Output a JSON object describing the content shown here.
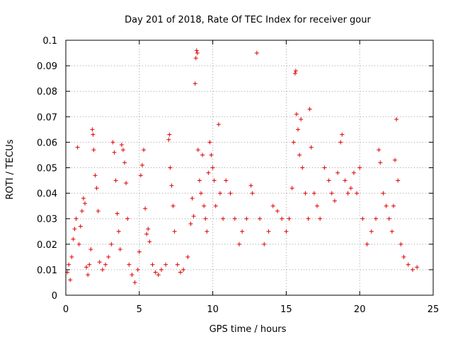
{
  "chart_data": {
    "type": "scatter",
    "title": "Day 201 of 2018, Rate Of TEC Index for receiver gour",
    "xlabel": "GPS time / hours",
    "ylabel": "ROTI / TECUs",
    "xlim": [
      0,
      25
    ],
    "ylim": [
      0,
      0.1
    ],
    "x_ticks": [
      0,
      5,
      10,
      15,
      20,
      25
    ],
    "x_tick_labels": [
      "0",
      "5",
      "10",
      "15",
      "20",
      "25"
    ],
    "y_ticks": [
      0,
      0.01,
      0.02,
      0.03,
      0.04,
      0.05,
      0.06,
      0.07,
      0.08,
      0.09,
      0.1
    ],
    "y_tick_labels": [
      "0",
      "0.01",
      "0.02",
      "0.03",
      "0.04",
      "0.05",
      "0.06",
      "0.07",
      "0.08",
      "0.09",
      "0.1"
    ],
    "grid": true,
    "marker": "+",
    "color": "#e00000",
    "series": [
      {
        "name": "ROTI",
        "points": [
          [
            0.1,
            0.009
          ],
          [
            0.2,
            0.012
          ],
          [
            0.3,
            0.006
          ],
          [
            0.4,
            0.015
          ],
          [
            0.5,
            0.022
          ],
          [
            0.6,
            0.026
          ],
          [
            0.7,
            0.03
          ],
          [
            0.8,
            0.058
          ],
          [
            0.9,
            0.02
          ],
          [
            1.0,
            0.027
          ],
          [
            1.1,
            0.033
          ],
          [
            1.2,
            0.038
          ],
          [
            1.3,
            0.036
          ],
          [
            1.4,
            0.011
          ],
          [
            1.5,
            0.008
          ],
          [
            1.6,
            0.012
          ],
          [
            1.7,
            0.018
          ],
          [
            1.8,
            0.065
          ],
          [
            1.85,
            0.063
          ],
          [
            1.9,
            0.057
          ],
          [
            2.0,
            0.047
          ],
          [
            2.1,
            0.042
          ],
          [
            2.2,
            0.033
          ],
          [
            2.3,
            0.013
          ],
          [
            2.5,
            0.01
          ],
          [
            2.7,
            0.012
          ],
          [
            2.9,
            0.015
          ],
          [
            3.1,
            0.02
          ],
          [
            3.2,
            0.06
          ],
          [
            3.3,
            0.056
          ],
          [
            3.4,
            0.045
          ],
          [
            3.5,
            0.032
          ],
          [
            3.6,
            0.025
          ],
          [
            3.7,
            0.018
          ],
          [
            3.8,
            0.059
          ],
          [
            3.9,
            0.057
          ],
          [
            4.0,
            0.052
          ],
          [
            4.1,
            0.044
          ],
          [
            4.2,
            0.03
          ],
          [
            4.3,
            0.012
          ],
          [
            4.5,
            0.008
          ],
          [
            4.7,
            0.005
          ],
          [
            4.9,
            0.01
          ],
          [
            5.0,
            0.017
          ],
          [
            5.1,
            0.047
          ],
          [
            5.2,
            0.051
          ],
          [
            5.3,
            0.057
          ],
          [
            5.4,
            0.034
          ],
          [
            5.5,
            0.024
          ],
          [
            5.6,
            0.026
          ],
          [
            5.7,
            0.021
          ],
          [
            5.9,
            0.012
          ],
          [
            6.1,
            0.009
          ],
          [
            6.3,
            0.008
          ],
          [
            6.5,
            0.01
          ],
          [
            6.8,
            0.012
          ],
          [
            7.0,
            0.061
          ],
          [
            7.05,
            0.063
          ],
          [
            7.1,
            0.05
          ],
          [
            7.2,
            0.043
          ],
          [
            7.3,
            0.035
          ],
          [
            7.4,
            0.025
          ],
          [
            7.6,
            0.012
          ],
          [
            7.8,
            0.009
          ],
          [
            8.0,
            0.01
          ],
          [
            8.3,
            0.015
          ],
          [
            8.5,
            0.028
          ],
          [
            8.6,
            0.038
          ],
          [
            8.7,
            0.031
          ],
          [
            8.8,
            0.083
          ],
          [
            8.85,
            0.093
          ],
          [
            8.9,
            0.096
          ],
          [
            8.95,
            0.095
          ],
          [
            9.0,
            0.057
          ],
          [
            9.1,
            0.045
          ],
          [
            9.2,
            0.04
          ],
          [
            9.3,
            0.055
          ],
          [
            9.4,
            0.035
          ],
          [
            9.5,
            0.03
          ],
          [
            9.6,
            0.025
          ],
          [
            9.7,
            0.048
          ],
          [
            9.8,
            0.06
          ],
          [
            9.9,
            0.055
          ],
          [
            10.0,
            0.05
          ],
          [
            10.1,
            0.045
          ],
          [
            10.2,
            0.035
          ],
          [
            10.4,
            0.067
          ],
          [
            10.5,
            0.04
          ],
          [
            10.7,
            0.03
          ],
          [
            10.9,
            0.045
          ],
          [
            11.2,
            0.04
          ],
          [
            11.5,
            0.03
          ],
          [
            11.8,
            0.02
          ],
          [
            12.0,
            0.025
          ],
          [
            12.3,
            0.03
          ],
          [
            12.6,
            0.043
          ],
          [
            12.7,
            0.04
          ],
          [
            13.0,
            0.095
          ],
          [
            13.2,
            0.03
          ],
          [
            13.5,
            0.02
          ],
          [
            13.8,
            0.025
          ],
          [
            14.1,
            0.035
          ],
          [
            14.4,
            0.033
          ],
          [
            14.7,
            0.03
          ],
          [
            15.0,
            0.025
          ],
          [
            15.2,
            0.03
          ],
          [
            15.4,
            0.042
          ],
          [
            15.5,
            0.06
          ],
          [
            15.6,
            0.087
          ],
          [
            15.65,
            0.088
          ],
          [
            15.7,
            0.071
          ],
          [
            15.8,
            0.065
          ],
          [
            15.9,
            0.055
          ],
          [
            16.0,
            0.069
          ],
          [
            16.1,
            0.05
          ],
          [
            16.3,
            0.04
          ],
          [
            16.5,
            0.03
          ],
          [
            16.6,
            0.073
          ],
          [
            16.7,
            0.058
          ],
          [
            16.9,
            0.04
          ],
          [
            17.1,
            0.035
          ],
          [
            17.3,
            0.03
          ],
          [
            17.6,
            0.05
          ],
          [
            17.9,
            0.045
          ],
          [
            18.1,
            0.04
          ],
          [
            18.3,
            0.037
          ],
          [
            18.5,
            0.048
          ],
          [
            18.7,
            0.06
          ],
          [
            18.8,
            0.063
          ],
          [
            19.0,
            0.045
          ],
          [
            19.2,
            0.04
          ],
          [
            19.4,
            0.042
          ],
          [
            19.6,
            0.048
          ],
          [
            19.8,
            0.04
          ],
          [
            20.0,
            0.05
          ],
          [
            20.2,
            0.03
          ],
          [
            20.5,
            0.02
          ],
          [
            20.8,
            0.025
          ],
          [
            21.1,
            0.03
          ],
          [
            21.3,
            0.057
          ],
          [
            21.4,
            0.052
          ],
          [
            21.6,
            0.04
          ],
          [
            21.8,
            0.035
          ],
          [
            22.0,
            0.03
          ],
          [
            22.2,
            0.025
          ],
          [
            22.3,
            0.035
          ],
          [
            22.4,
            0.053
          ],
          [
            22.5,
            0.069
          ],
          [
            22.6,
            0.045
          ],
          [
            22.8,
            0.02
          ],
          [
            23.0,
            0.015
          ],
          [
            23.3,
            0.012
          ],
          [
            23.6,
            0.01
          ],
          [
            23.9,
            0.011
          ]
        ]
      }
    ]
  }
}
